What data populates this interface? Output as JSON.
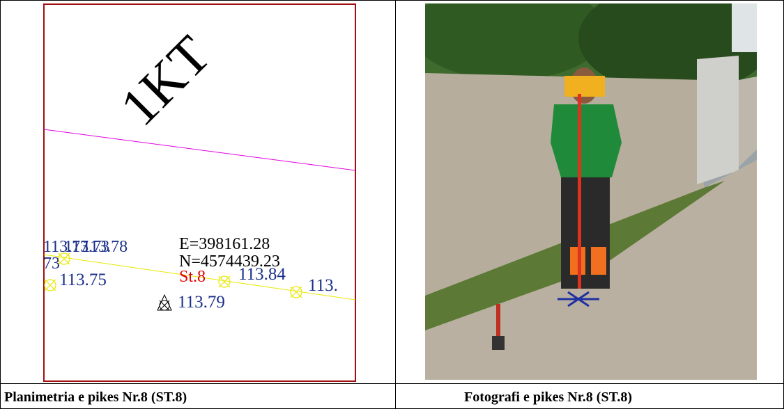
{
  "drawing": {
    "grid_label": "1KT",
    "coords": [
      "E=398161.28",
      "N=4574439.23"
    ],
    "station": "St.8",
    "elevations": [
      "113.75",
      "113.79",
      "113.84",
      "113."
    ],
    "overlap_labels": [
      "113.77",
      "113.73",
      "113.78",
      "73"
    ]
  },
  "captions": [
    "Planimetria e pikes Nr.8 (ST.8)",
    "Fotografi e pikes Nr.8 (ST.8)"
  ]
}
